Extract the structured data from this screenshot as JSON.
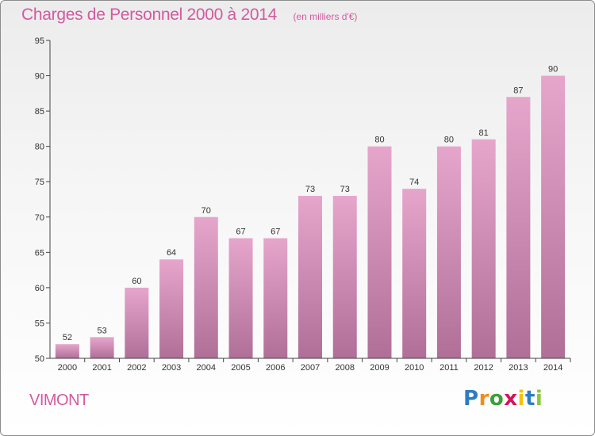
{
  "header": {
    "title": "Charges de Personnel 2000 à 2014",
    "subtitle": "(en milliers d'€)"
  },
  "commune": "VIMONT",
  "logo": {
    "text": "Proxiti",
    "letters": [
      {
        "ch": "P",
        "color": "#2e7dc1"
      },
      {
        "ch": "r",
        "color": "#f08c1e"
      },
      {
        "ch": "o",
        "color": "#3aa03a"
      },
      {
        "ch": "x",
        "color": "#d4145a"
      },
      {
        "ch": "i",
        "color": "#f4c20d"
      },
      {
        "ch": "t",
        "color": "#2e7dc1"
      },
      {
        "ch": "i",
        "color": "#8dc63f"
      }
    ]
  },
  "colors": {
    "accent": "#d25aa0",
    "bar_top": "#e6a6cc",
    "bar_bottom": "#b06f97"
  },
  "chart_data": {
    "type": "bar",
    "title": "Charges de Personnel 2000 à 2014",
    "subtitle": "(en milliers d'€)",
    "xlabel": "",
    "ylabel": "",
    "categories": [
      "2000",
      "2001",
      "2002",
      "2003",
      "2004",
      "2005",
      "2006",
      "2007",
      "2008",
      "2009",
      "2010",
      "2011",
      "2012",
      "2013",
      "2014"
    ],
    "values": [
      52,
      53,
      60,
      64,
      70,
      67,
      67,
      73,
      73,
      80,
      74,
      80,
      81,
      87,
      90
    ],
    "ylim": [
      50,
      95
    ],
    "yticks": [
      50,
      55,
      60,
      65,
      70,
      75,
      80,
      85,
      90,
      95
    ],
    "grid": false,
    "legend": "none",
    "data_labels": true
  }
}
